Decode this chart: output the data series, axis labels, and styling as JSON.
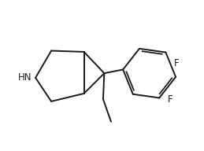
{
  "background_color": "#ffffff",
  "bond_color": "#1a1a1a",
  "text_color": "#1a1a1a",
  "bond_width": 1.4,
  "font_size": 8.5,
  "hn_label": "HN",
  "f_label": "F",
  "figsize": [
    2.59,
    1.92
  ],
  "dpi": 100,
  "xlim": [
    0.0,
    9.0
  ],
  "ylim": [
    0.8,
    6.8
  ]
}
